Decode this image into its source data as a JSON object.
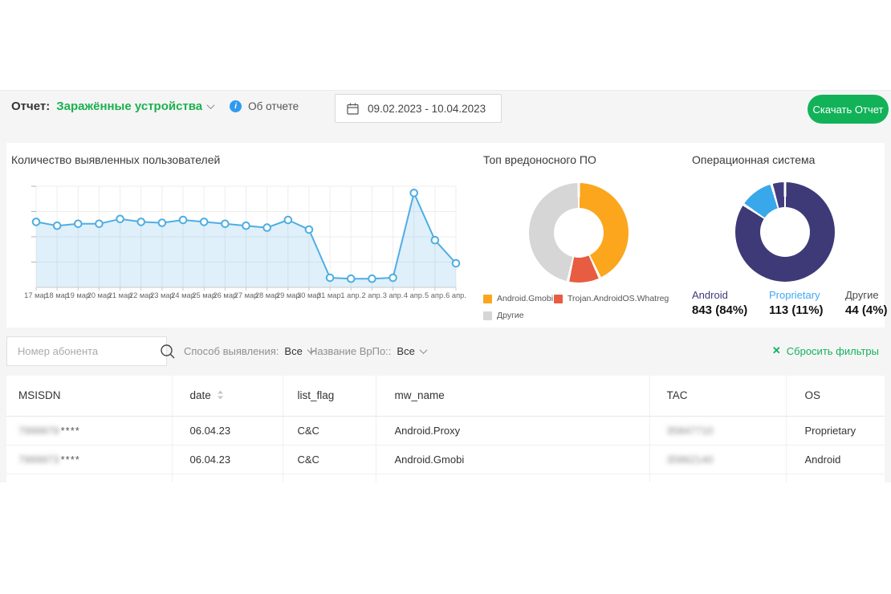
{
  "toolbar": {
    "report_label": "Отчет:",
    "report_name": "Заражённые устройства",
    "about_link": "Об отчете",
    "date_range": "09.02.2023 - 10.04.2023",
    "download_button": "Скачать Отчет",
    "accent_green": "#12B259",
    "info_blue": "#2F9BF0"
  },
  "chart_data": [
    {
      "type": "line",
      "title": "Количество выявленных пользователей",
      "categories": [
        "17 мар",
        "18 мар",
        "19 мар",
        "20 мар",
        "21 мар",
        "22 мар",
        "23 мар",
        "24 мар",
        "25 мар",
        "26 мар",
        "27 мар",
        "28 мар",
        "29 мар",
        "30 мар",
        "31 мар.",
        "1 апр.",
        "2 апр.",
        "3 апр.",
        "4 апр.",
        "5 апр.",
        "6 апр."
      ],
      "values": [
        68,
        64,
        66,
        66,
        71,
        68,
        67,
        70,
        68,
        66,
        64,
        62,
        70,
        60,
        10,
        9,
        9,
        10,
        98,
        49,
        25
      ],
      "xlabel": "",
      "ylabel": "",
      "ylim": [
        0,
        105
      ],
      "grid": true,
      "line_color": "#4FAEE3",
      "fill_color": "rgba(79,174,227,0.18)",
      "legend_position": "none"
    },
    {
      "type": "pie",
      "title": "Топ вредоносного ПО",
      "legend_position": "bottom",
      "slices": [
        {
          "label": "Android.Gmobi",
          "value": 43,
          "color": "#FBA61C"
        },
        {
          "label": "Trojan.AndroidOS.Whatreg",
          "value": 10.5,
          "color": "#E85C41"
        },
        {
          "label": "Другие",
          "value": 46.5,
          "color": "#D6D6D6"
        }
      ]
    },
    {
      "type": "pie",
      "title": "Операционная система",
      "legend_position": "bottom",
      "slices": [
        {
          "label": "Android",
          "value": 843,
          "color": "#3E3A78",
          "label_color": "#3E3A78"
        },
        {
          "label": "Proprietary",
          "value": 113,
          "color": "#38A8EA",
          "label_color": "#3FA9F5"
        },
        {
          "label": "Другие",
          "value": 44,
          "color": "#413D7E",
          "label_color": "#4A4A4A"
        }
      ],
      "stats": [
        {
          "label": "Android",
          "value": "843 (84%)"
        },
        {
          "label": "Proprietary",
          "value": "113 (11%)"
        },
        {
          "label": "Другие",
          "value": "44 (4%)"
        }
      ]
    }
  ],
  "filters": {
    "search_placeholder": "Номер абонента",
    "detect_label": "Способ выявления:",
    "detect_value": "Все",
    "malware_label": "Название ВрПо::",
    "malware_value": "Все",
    "reset_label": "Сбросить фильтры",
    "reset_icon": "✕"
  },
  "table": {
    "columns": [
      "MSISDN",
      "date",
      "list_flag",
      "mw_name",
      "TAC",
      "OS"
    ],
    "rows": [
      {
        "msisdn_masked": "7999979",
        "msisdn_suffix": "****",
        "date": "06.04.23",
        "list_flag": "C&C",
        "mw_name": "Android.Proxy",
        "tac_masked": "35847710",
        "os": "Proprietary"
      },
      {
        "msisdn_masked": "7999973",
        "msisdn_suffix": "****",
        "date": "06.04.23",
        "list_flag": "C&C",
        "mw_name": "Android.Gmobi",
        "tac_masked": "35862140",
        "os": "Android"
      }
    ]
  }
}
